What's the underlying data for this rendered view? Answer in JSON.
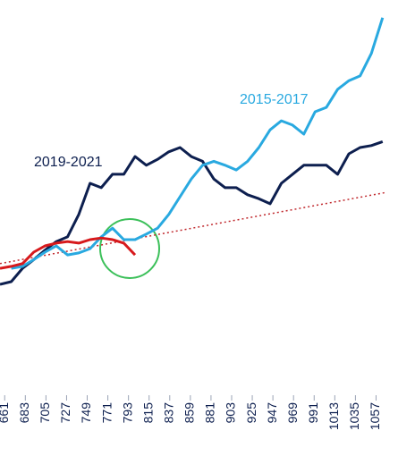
{
  "chart_data": {
    "type": "line",
    "x": [
      656,
      668,
      680,
      692,
      704,
      716,
      728,
      740,
      752,
      764,
      776,
      788,
      800,
      812,
      824,
      836,
      848,
      860,
      872,
      884,
      896,
      908,
      920,
      932,
      944,
      956,
      968,
      980,
      992,
      1004,
      1016,
      1028,
      1040,
      1052,
      1064
    ],
    "series": [
      {
        "name": "2019-2021",
        "color": "#0d1f4f",
        "values": [
          27.7,
          28.4,
          31.8,
          34,
          36.4,
          38.6,
          39.8,
          45.5,
          53.4,
          52.3,
          55.7,
          55.7,
          60.2,
          58,
          59.5,
          61.4,
          62.5,
          60.2,
          59,
          54.5,
          52.3,
          52.3,
          50.5,
          49.5,
          48.2,
          53.4,
          55.7,
          58,
          58,
          58,
          55.7,
          60.9,
          62.5,
          63,
          64
        ]
      },
      {
        "name": "2015-2017",
        "color": "#29a9e0",
        "values": [
          null,
          31.8,
          32.3,
          34,
          35.9,
          37.5,
          35.2,
          35.7,
          36.8,
          39.8,
          42,
          39.1,
          39.1,
          40.5,
          42,
          45.5,
          50,
          54.5,
          58,
          59,
          58,
          56.8,
          59,
          62.5,
          67,
          69.3,
          68.2,
          65.9,
          71.6,
          72.7,
          77.3,
          79.5,
          80.7,
          86.4,
          95.5
        ]
      },
      {
        "color": "#d7191c",
        "values": [
          31.8,
          32.3,
          33,
          35.9,
          37.5,
          38.2,
          38.6,
          38.2,
          39.1,
          39.5,
          39.1,
          38.2,
          35.2,
          null,
          null,
          null,
          null,
          null,
          null,
          null,
          null,
          null,
          null,
          null,
          null,
          null,
          null,
          null,
          null,
          null,
          null,
          null,
          null,
          null,
          null
        ]
      }
    ],
    "trend_line": {
      "x": [
        656,
        1068
      ],
      "values": [
        33,
        51.1
      ],
      "color": "#c0282d"
    },
    "xlim": [
      656,
      1068
    ],
    "ylim": [
      0,
      100
    ],
    "xticks": [
      661,
      683,
      705,
      727,
      749,
      771,
      793,
      815,
      837,
      859,
      881,
      903,
      925,
      947,
      969,
      991,
      1013,
      1035,
      1057
    ]
  }
}
